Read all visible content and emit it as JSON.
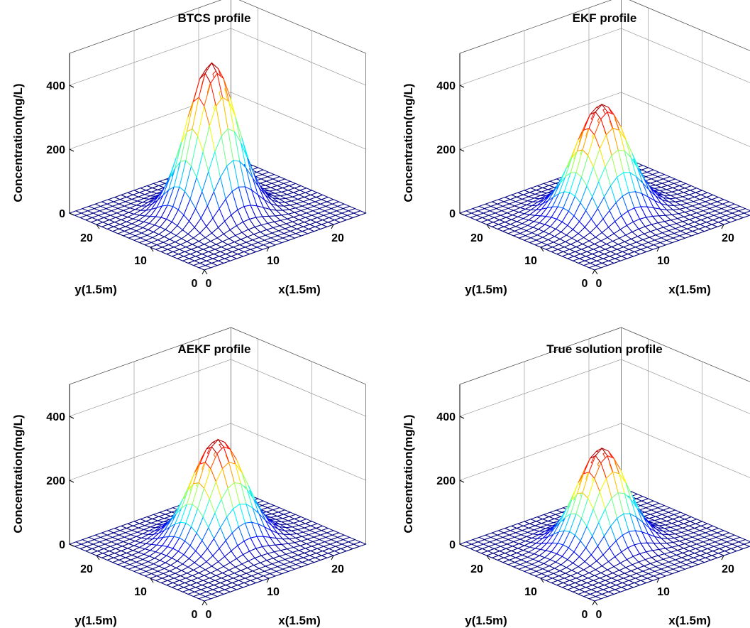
{
  "chart_data": [
    {
      "type": "surface",
      "title": "BTCS profile",
      "xlabel": "x(1.5m)",
      "ylabel": "y(1.5m)",
      "zlabel": "Concentration(mg/L)",
      "xlim": [
        0,
        25
      ],
      "ylim": [
        0,
        25
      ],
      "zlim": [
        0,
        500
      ],
      "xticks": [
        0,
        10,
        20
      ],
      "yticks": [
        0,
        10,
        20
      ],
      "zticks": [
        0,
        200,
        400
      ],
      "grid_size": 26,
      "peak_value": 470,
      "peak_x": 12,
      "peak_y": 13,
      "spread_x": 3.0,
      "spread_y": 3.0,
      "grid": true,
      "colormap": "jet"
    },
    {
      "type": "surface",
      "title": "EKF profile",
      "xlabel": "x(1.5m)",
      "ylabel": "y(1.5m)",
      "zlabel": "Concentration(mg/L)",
      "xlim": [
        0,
        25
      ],
      "ylim": [
        0,
        25
      ],
      "zlim": [
        0,
        500
      ],
      "xticks": [
        0,
        10,
        20
      ],
      "yticks": [
        0,
        10,
        20
      ],
      "zticks": [
        0,
        200,
        400
      ],
      "grid_size": 26,
      "peak_value": 340,
      "peak_x": 12,
      "peak_y": 13,
      "spread_x": 3.2,
      "spread_y": 3.2,
      "grid": true,
      "colormap": "jet"
    },
    {
      "type": "surface",
      "title": "AEKF profile",
      "xlabel": "x(1.5m)",
      "ylabel": "y(1.5m)",
      "zlabel": "Concentration(mg/L)",
      "xlim": [
        0,
        25
      ],
      "ylim": [
        0,
        25
      ],
      "zlim": [
        0,
        500
      ],
      "xticks": [
        0,
        10,
        20
      ],
      "yticks": [
        0,
        10,
        20
      ],
      "zticks": [
        0,
        200,
        400
      ],
      "grid_size": 26,
      "peak_value": 320,
      "peak_x": 13,
      "peak_y": 13,
      "spread_x": 3.2,
      "spread_y": 3.2,
      "grid": true,
      "colormap": "jet"
    },
    {
      "type": "surface",
      "title": "True solution profile",
      "xlabel": "x(1.5m)",
      "ylabel": "y(1.5m)",
      "zlabel": "Concentration(mg/L)",
      "xlim": [
        0,
        25
      ],
      "ylim": [
        0,
        25
      ],
      "zlim": [
        0,
        500
      ],
      "xticks": [
        0,
        10,
        20
      ],
      "yticks": [
        0,
        10,
        20
      ],
      "zticks": [
        0,
        200,
        400
      ],
      "grid_size": 26,
      "peak_value": 300,
      "peak_x": 12,
      "peak_y": 13,
      "spread_x": 3.0,
      "spread_y": 3.0,
      "grid": true,
      "colormap": "jet"
    }
  ]
}
